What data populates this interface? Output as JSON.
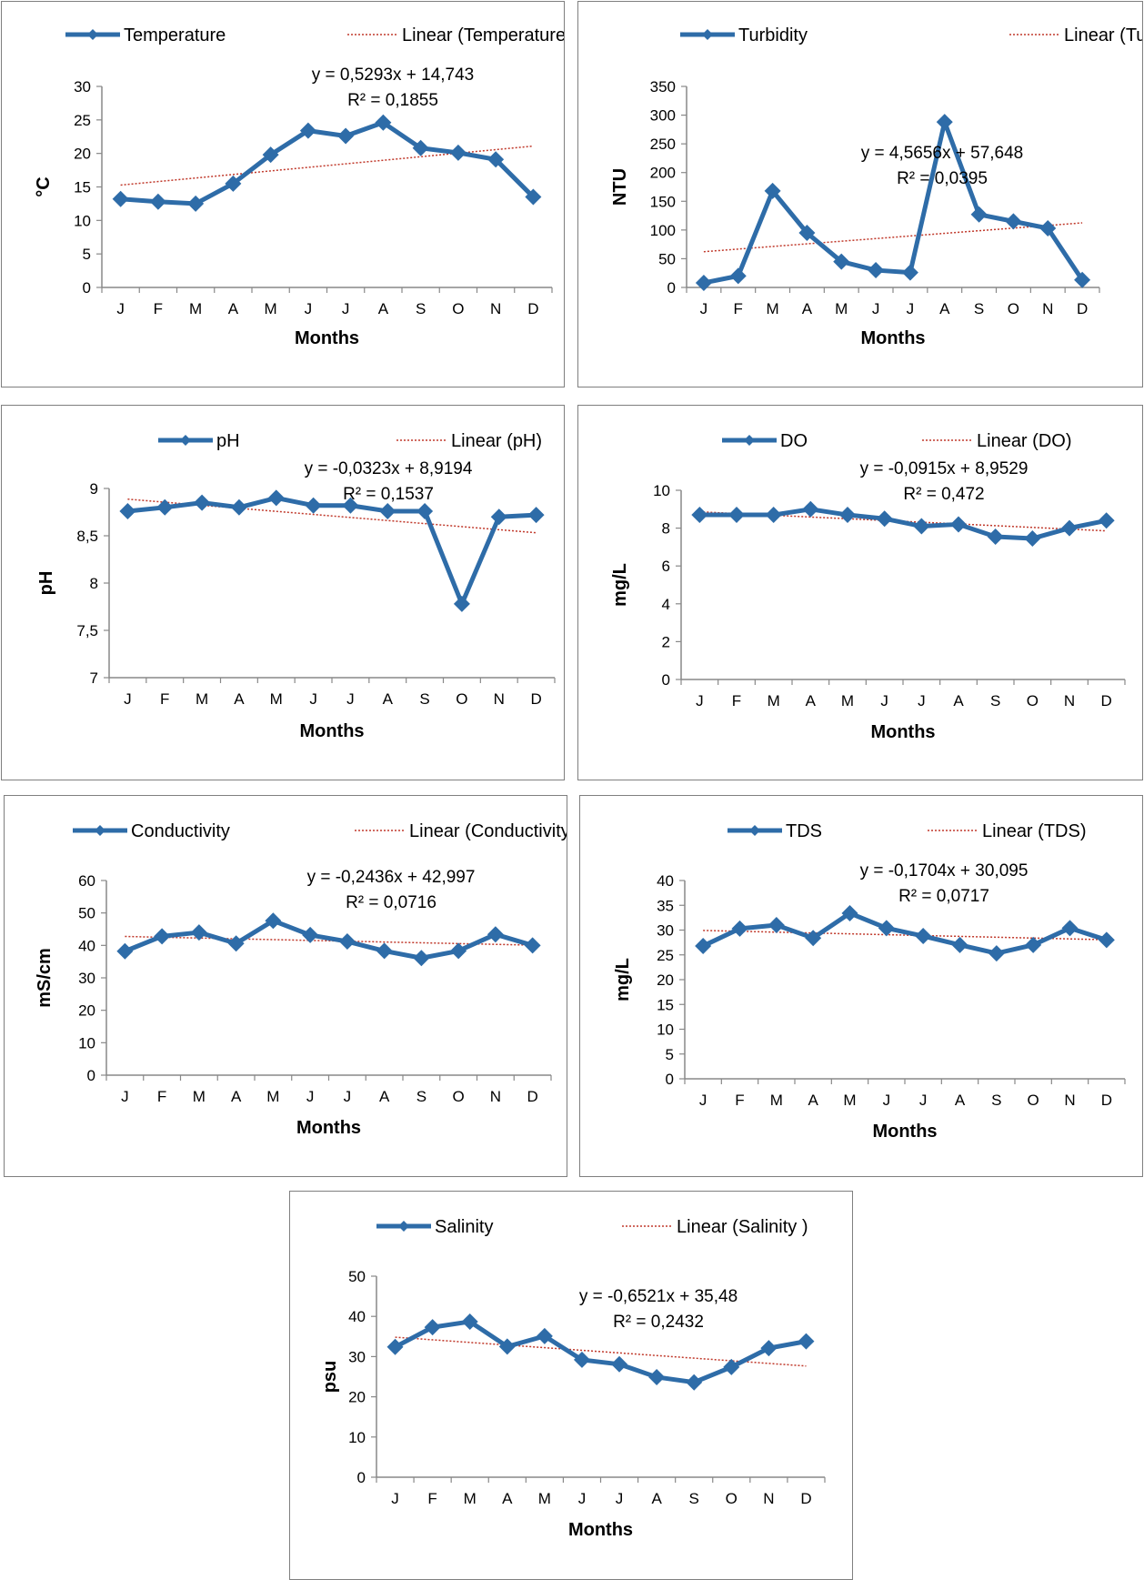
{
  "chart_data": [
    {
      "type": "line",
      "title": "",
      "xlabel": "Months",
      "ylabel": "°C",
      "categories": [
        "J",
        "F",
        "M",
        "A",
        "M",
        "J",
        "J",
        "A",
        "S",
        "O",
        "N",
        "D"
      ],
      "series": [
        {
          "name": "Temperature",
          "values": [
            13.2,
            12.8,
            12.5,
            15.5,
            19.8,
            23.4,
            22.6,
            24.6,
            20.8,
            20.1,
            19.1,
            13.5
          ]
        },
        {
          "name": "Linear (Temperature)",
          "kind": "trendline",
          "slope": 0.5293,
          "intercept": 14.743
        }
      ],
      "ylim": [
        0,
        30
      ],
      "yticks": [
        "0",
        "5",
        "10",
        "15",
        "20",
        "25",
        "30"
      ],
      "equation": "y = 0,5293x + 14,743",
      "r2": "R² = 0,1855",
      "colors": {
        "series": "#2e6ca8",
        "trend": "#c0392b"
      }
    },
    {
      "type": "line",
      "title": "",
      "xlabel": "Months",
      "ylabel": "NTU",
      "categories": [
        "J",
        "F",
        "M",
        "A",
        "M",
        "J",
        "J",
        "A",
        "S",
        "O",
        "N",
        "D"
      ],
      "series": [
        {
          "name": "Turbidity",
          "values": [
            8,
            20,
            168,
            95,
            45,
            30,
            26,
            288,
            127,
            115,
            103,
            13
          ]
        },
        {
          "name": "Linear (Turbidity)",
          "kind": "trendline",
          "slope": 4.5656,
          "intercept": 57.648
        }
      ],
      "ylim": [
        0,
        350
      ],
      "yticks": [
        "0",
        "50",
        "100",
        "150",
        "200",
        "250",
        "300",
        "350"
      ],
      "equation": "y = 4,5656x + 57,648",
      "r2": "R² = 0,0395",
      "colors": {
        "series": "#2e6ca8",
        "trend": "#c0392b"
      }
    },
    {
      "type": "line",
      "title": "",
      "xlabel": "Months",
      "ylabel": "pH",
      "categories": [
        "J",
        "F",
        "M",
        "A",
        "M",
        "J",
        "J",
        "A",
        "S",
        "O",
        "N",
        "D"
      ],
      "series": [
        {
          "name": "pH",
          "values": [
            8.76,
            8.8,
            8.85,
            8.8,
            8.9,
            8.82,
            8.82,
            8.76,
            8.76,
            7.78,
            8.7,
            8.72
          ]
        },
        {
          "name": "Linear (pH)",
          "kind": "trendline",
          "slope": -0.0323,
          "intercept": 8.9194
        }
      ],
      "ylim": [
        7,
        9
      ],
      "yticks": [
        "7",
        "7,5",
        "8",
        "8,5",
        "9"
      ],
      "equation": "y = -0,0323x + 8,9194",
      "r2": "R² = 0,1537",
      "colors": {
        "series": "#2e6ca8",
        "trend": "#c0392b"
      }
    },
    {
      "type": "line",
      "title": "",
      "xlabel": "Months",
      "ylabel": "mg/L",
      "categories": [
        "J",
        "F",
        "M",
        "A",
        "M",
        "J",
        "J",
        "A",
        "S",
        "O",
        "N",
        "D"
      ],
      "series": [
        {
          "name": "DO",
          "values": [
            8.7,
            8.7,
            8.7,
            9.0,
            8.7,
            8.5,
            8.1,
            8.2,
            7.55,
            7.45,
            8.0,
            8.4
          ]
        },
        {
          "name": "Linear (DO)",
          "kind": "trendline",
          "slope": -0.0915,
          "intercept": 8.9529
        }
      ],
      "ylim": [
        0,
        10
      ],
      "yticks": [
        "0",
        "2",
        "4",
        "6",
        "8",
        "10"
      ],
      "equation": "y = -0,0915x + 8,9529",
      "r2": "R² = 0,472",
      "colors": {
        "series": "#2e6ca8",
        "trend": "#c0392b"
      }
    },
    {
      "type": "line",
      "title": "",
      "xlabel": "Months",
      "ylabel": "mS/cm",
      "categories": [
        "J",
        "F",
        "M",
        "A",
        "M",
        "J",
        "J",
        "A",
        "S",
        "O",
        "N",
        "D"
      ],
      "series": [
        {
          "name": "Conductivity",
          "values": [
            38.2,
            42.8,
            44,
            40.6,
            47.6,
            43.2,
            41.2,
            38.3,
            36.1,
            38.3,
            43.4,
            40
          ]
        },
        {
          "name": "Linear (Conductivity)",
          "kind": "trendline",
          "slope": -0.2436,
          "intercept": 42.997
        }
      ],
      "ylim": [
        0,
        60
      ],
      "yticks": [
        "0",
        "10",
        "20",
        "30",
        "40",
        "50",
        "60"
      ],
      "equation": "y = -0,2436x + 42,997",
      "r2": "R² = 0,0716",
      "colors": {
        "series": "#2e6ca8",
        "trend": "#c0392b"
      }
    },
    {
      "type": "line",
      "title": "",
      "xlabel": "Months",
      "ylabel": "mg/L",
      "categories": [
        "J",
        "F",
        "M",
        "A",
        "M",
        "J",
        "J",
        "A",
        "S",
        "O",
        "N",
        "D"
      ],
      "series": [
        {
          "name": "TDS",
          "values": [
            26.8,
            30.3,
            31,
            28.4,
            33.4,
            30.4,
            28.8,
            27,
            25.3,
            27,
            30.4,
            28
          ]
        },
        {
          "name": "Linear (TDS)",
          "kind": "trendline",
          "slope": -0.1704,
          "intercept": 30.095
        }
      ],
      "ylim": [
        0,
        40
      ],
      "yticks": [
        "0",
        "5",
        "10",
        "15",
        "20",
        "25",
        "30",
        "35",
        "40"
      ],
      "equation": "y = -0,1704x + 30,095",
      "r2": "R² = 0,0717",
      "colors": {
        "series": "#2e6ca8",
        "trend": "#c0392b"
      }
    },
    {
      "type": "line",
      "title": "",
      "xlabel": "Months",
      "ylabel": "psu",
      "categories": [
        "J",
        "F",
        "M",
        "A",
        "M",
        "J",
        "J",
        "A",
        "S",
        "O",
        "N",
        "D"
      ],
      "series": [
        {
          "name": "Salinity",
          "values": [
            32.4,
            37.3,
            38.7,
            32.5,
            35.1,
            29.2,
            28.1,
            24.9,
            23.6,
            27.4,
            32.1,
            33.8
          ]
        },
        {
          "name": "Linear (Salinity )",
          "kind": "trendline",
          "slope": -0.6521,
          "intercept": 35.48
        }
      ],
      "ylim": [
        0,
        50
      ],
      "yticks": [
        "0",
        "10",
        "20",
        "30",
        "40",
        "50"
      ],
      "equation": "y = -0,6521x + 35,48",
      "r2": "R² = 0,2432",
      "colors": {
        "series": "#2e6ca8",
        "trend": "#c0392b"
      }
    }
  ]
}
